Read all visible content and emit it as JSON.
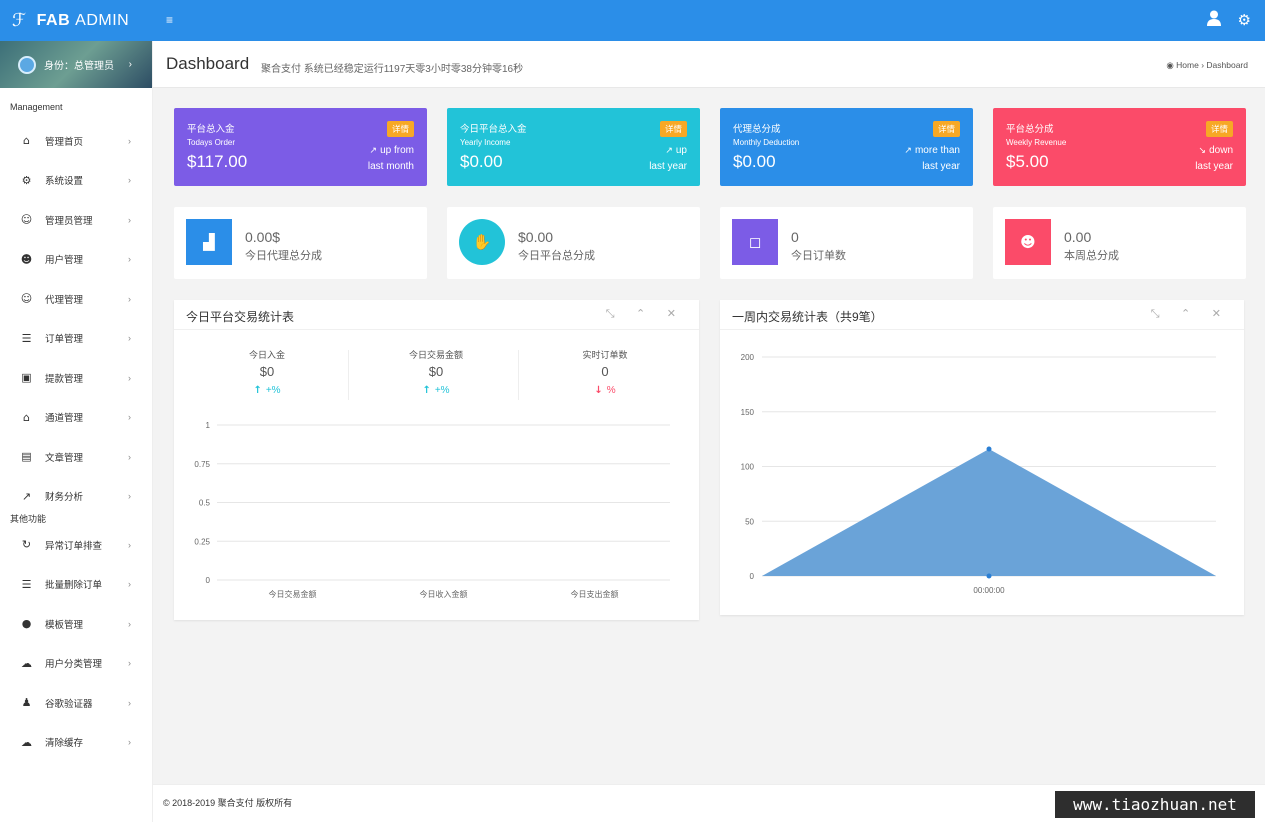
{
  "brand": {
    "logo_icon": "feather-logo-icon",
    "name_bold": "FAB",
    "name": "ADMIN"
  },
  "topbar": {
    "menu_toggle": "≡",
    "user_icon": "user-icon",
    "settings_icon": "gear-icon",
    "color": "#2b8ee8"
  },
  "profile": {
    "label": "身份：总管理员",
    "chevron": "›"
  },
  "sidebar": {
    "section1": "Management",
    "items": [
      {
        "icon": "home-icon",
        "glyph": "⌂",
        "label": "管理首页"
      },
      {
        "icon": "gears-icon",
        "glyph": "⚙",
        "label": "系统设置"
      },
      {
        "icon": "user-circle-icon",
        "glyph": "☺",
        "label": "管理员管理"
      },
      {
        "icon": "users-icon",
        "glyph": "☻",
        "label": "用户管理"
      },
      {
        "icon": "user-circle-icon",
        "glyph": "☺",
        "label": "代理管理"
      },
      {
        "icon": "list-icon",
        "glyph": "☰",
        "label": "订单管理"
      },
      {
        "icon": "lock-icon",
        "glyph": "▣",
        "label": "提款管理"
      },
      {
        "icon": "bank-icon",
        "glyph": "⌂",
        "label": "通道管理"
      },
      {
        "icon": "book-icon",
        "glyph": "▤",
        "label": "文章管理"
      },
      {
        "icon": "line-chart-icon",
        "glyph": "↗",
        "label": "财务分析"
      }
    ],
    "section2": "其他功能",
    "items2": [
      {
        "icon": "refresh-icon",
        "glyph": "↻",
        "label": "异常订单排查"
      },
      {
        "icon": "list-icon",
        "glyph": "☰",
        "label": "批量删除订单"
      },
      {
        "icon": "apple-icon",
        "glyph": "●",
        "label": "模板管理"
      },
      {
        "icon": "wechat-icon",
        "glyph": "☁",
        "label": "用户分类管理"
      },
      {
        "icon": "user-icon",
        "glyph": "♟",
        "label": "谷歌验证器"
      },
      {
        "icon": "cloud-icon",
        "glyph": "☁",
        "label": "清除缓存"
      }
    ],
    "chevron": "›"
  },
  "header": {
    "title": "Dashboard",
    "subtitle": "聚合支付 系统已经稳定运行1197天零3小时零38分钟零16秒",
    "breadcrumb_home": "Home",
    "breadcrumb_sep": "›",
    "breadcrumb_current": "Dashboard"
  },
  "stats": [
    {
      "title": "平台总入金",
      "sub": "Todays Order",
      "value": "$117.00",
      "badge": "详情",
      "trend_icon": "trend-up-icon",
      "trend_glyph": "↗",
      "trend1": "up from",
      "trend2": "last month",
      "color": "#7c5ce6"
    },
    {
      "title": "今日平台总入金",
      "sub": "Yearly Income",
      "value": "$0.00",
      "badge": "详情",
      "trend_icon": "trend-up-icon",
      "trend_glyph": "↗",
      "trend1": "up",
      "trend2": "last year",
      "color": "#22c3d8"
    },
    {
      "title": "代理总分成",
      "sub": "Monthly Deduction",
      "value": "$0.00",
      "badge": "详情",
      "trend_icon": "trend-up-icon",
      "trend_glyph": "↗",
      "trend1": "more than",
      "trend2": "last year",
      "color": "#2b8ee8"
    },
    {
      "title": "平台总分成",
      "sub": "Weekly Revenue",
      "value": "$5.00",
      "badge": "详情",
      "trend_icon": "trend-down-icon",
      "trend_glyph": "↘",
      "trend1": "down",
      "trend2": "last year",
      "color": "#fb4b69"
    }
  ],
  "summary": [
    {
      "icon": "bar-chart-icon",
      "glyph": "▟",
      "value": "0.00$",
      "label": "今日代理总分成",
      "color": "#2b8ee8",
      "round": false
    },
    {
      "icon": "thumbs-up-icon",
      "glyph": "✋",
      "value": "$0.00",
      "label": "今日平台总分成",
      "color": "#22c3d8",
      "round": true
    },
    {
      "icon": "shopping-bag-icon",
      "glyph": "◻",
      "value": "0",
      "label": "今日订单数",
      "color": "#7c5ce6",
      "round": false
    },
    {
      "icon": "users-icon",
      "glyph": "☻",
      "value": "0.00",
      "label": "本周总分成",
      "color": "#fb4b69",
      "round": false
    }
  ],
  "panel1": {
    "title": "今日平台交易统计表",
    "tools": [
      "expand-icon",
      "collapse-icon",
      "close-icon"
    ],
    "tool_glyphs": "⤡ ⌃ ✕",
    "kpis": [
      {
        "label": "今日入金",
        "value": "$0",
        "change_glyph": "↑",
        "change": "+%",
        "color": "#22c3d8"
      },
      {
        "label": "今日交易金额",
        "value": "$0",
        "change_glyph": "↑",
        "change": "+%",
        "color": "#22c3d8"
      },
      {
        "label": "实时订单数",
        "value": "0",
        "change_glyph": "↓",
        "change": "%",
        "color": "#fb4b69"
      }
    ]
  },
  "panel2": {
    "title": "一周内交易统计表（共9笔）",
    "tools": [
      "expand-icon",
      "collapse-icon",
      "close-icon"
    ],
    "tool_glyphs": "⤡ ⌃ ✕"
  },
  "chart_data": [
    {
      "type": "bar",
      "title": "",
      "categories": [
        "今日交易金额",
        "今日收入金额",
        "今日支出金额"
      ],
      "values": [
        0,
        0,
        0
      ],
      "ylim": [
        0,
        1
      ],
      "yticks": [
        "0",
        "0.25",
        "0.5",
        "0.75",
        "1"
      ],
      "grid": true
    },
    {
      "type": "area",
      "title": "",
      "x": [
        "",
        "00:00:00",
        ""
      ],
      "values": [
        0,
        116,
        0
      ],
      "ylim": [
        0,
        200
      ],
      "yticks": [
        "0",
        "50",
        "100",
        "150",
        "200"
      ],
      "grid": true,
      "color": "#6aa3d8",
      "point_color": "#2b7fd4"
    }
  ],
  "footer": {
    "text": "© 2018-2019 聚合支付 版权所有"
  },
  "watermark": "www.tiaozhuan.net"
}
